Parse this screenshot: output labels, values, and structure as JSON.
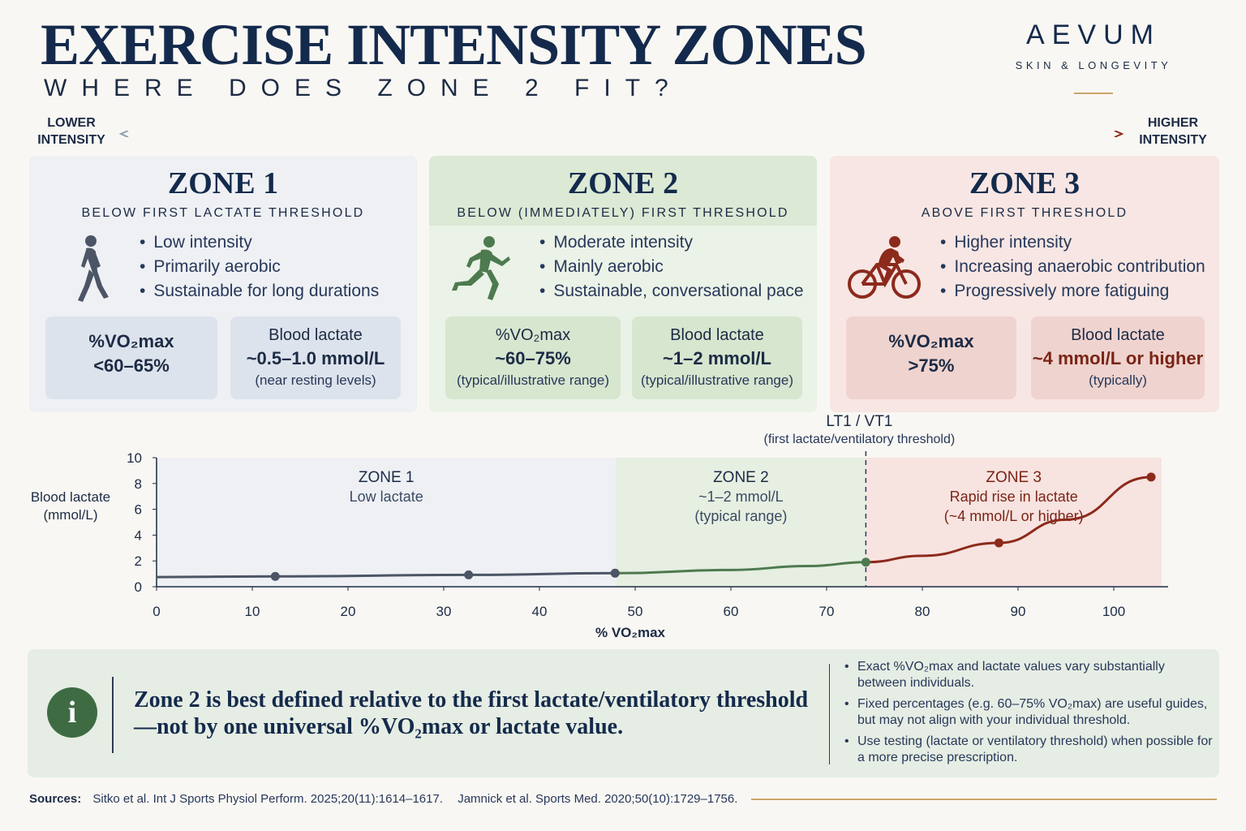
{
  "header": {
    "title": "EXERCISE INTENSITY ZONES",
    "subtitle": "WHERE DOES ZONE 2 FIT?",
    "brand_name": "AEVUM",
    "brand_tagline": "SKIN & LONGEVITY"
  },
  "intensity_scale": {
    "low_label": "LOWER INTENSITY",
    "high_label": "HIGHER INTENSITY"
  },
  "zones": [
    {
      "title": "ZONE 1",
      "subtitle": "BELOW FIRST LACTATE THRESHOLD",
      "icon": "walking-person-icon",
      "bullets": [
        "Low intensity",
        "Primarily aerobic",
        "Sustainable for long durations"
      ],
      "vo2_label": "%VO₂max",
      "vo2_value": "<60–65%",
      "vo2_note": "",
      "lactate_label": "Blood lactate",
      "lactate_value": "~0.5–1.0 mmol/L",
      "lactate_note": "(near resting levels)"
    },
    {
      "title": "ZONE 2",
      "subtitle": "BELOW (IMMEDIATELY) FIRST THRESHOLD",
      "icon": "running-person-icon",
      "bullets": [
        "Moderate intensity",
        "Mainly aerobic",
        "Sustainable, conversational pace"
      ],
      "vo2_label": "%VO₂max",
      "vo2_value": "~60–75%",
      "vo2_note": "(typical/illustrative range)",
      "lactate_label": "Blood lactate",
      "lactate_value": "~1–2 mmol/L",
      "lactate_note": "(typical/illustrative range)"
    },
    {
      "title": "ZONE 3",
      "subtitle": "ABOVE FIRST THRESHOLD",
      "icon": "cyclist-icon",
      "bullets": [
        "Higher intensity",
        "Increasing anaerobic contribution",
        "Progressively more fatiguing"
      ],
      "vo2_label": "%VO₂max",
      "vo2_value": ">75%",
      "vo2_note": "",
      "lactate_label": "Blood lactate",
      "lactate_value": "~4 mmol/L or higher",
      "lactate_note": "(typically)"
    }
  ],
  "chart_data": {
    "type": "line",
    "xlabel": "% VO₂max",
    "ylabel": "Blood lactate (mmol/L)",
    "xlim": [
      0,
      105
    ],
    "ylim": [
      0,
      10
    ],
    "xticks": [
      0,
      10,
      20,
      30,
      40,
      50,
      60,
      70,
      80,
      90,
      100
    ],
    "yticks": [
      0,
      2,
      4,
      6,
      8,
      10
    ],
    "series": [
      {
        "color": "#4b5565",
        "x": [
          0,
          12.4,
          32.6,
          47.9
        ],
        "y": [
          0.75,
          0.8,
          0.92,
          1.05
        ]
      },
      {
        "color": "#4d7a4f",
        "x": [
          47.9,
          60,
          68,
          74.1
        ],
        "y": [
          1.05,
          1.3,
          1.6,
          1.9
        ]
      },
      {
        "color": "#8c2a1c",
        "x": [
          74.1,
          80,
          88.0,
          95,
          103.9
        ],
        "y": [
          1.9,
          2.4,
          3.4,
          5.2,
          8.5
        ]
      }
    ],
    "markers": [
      {
        "x": 12.4,
        "y": 0.8,
        "color": "#4b5565"
      },
      {
        "x": 32.6,
        "y": 0.92,
        "color": "#4b5565"
      },
      {
        "x": 47.9,
        "y": 1.05,
        "color": "#4b5565"
      },
      {
        "x": 74.1,
        "y": 1.9,
        "color": "#4d7a4f"
      },
      {
        "x": 88.0,
        "y": 3.4,
        "color": "#8c2a1c"
      },
      {
        "x": 103.9,
        "y": 8.5,
        "color": "#8c2a1c"
      }
    ],
    "regions": [
      {
        "from": 0,
        "to": 48,
        "color": "#eef0f4",
        "label": "ZONE 1",
        "lines": [
          "Low lactate"
        ],
        "label_color": "#1c2b45"
      },
      {
        "from": 48,
        "to": 74.1,
        "color": "#e6efe1",
        "label": "ZONE 2",
        "lines": [
          "~1–2 mmol/L",
          "(typical range)"
        ],
        "label_color": "#1c2b45"
      },
      {
        "from": 74.1,
        "to": 105,
        "color": "#f7e3e0",
        "label": "ZONE 3",
        "lines": [
          "Rapid rise in lactate",
          "(~4 mmol/L or higher)"
        ],
        "label_color": "#7a2416"
      }
    ],
    "threshold": {
      "x": 74.1,
      "label": "LT1 / VT1",
      "sublabel": "(first lactate/ventilatory threshold)"
    }
  },
  "note": {
    "main_text": "Zone 2 is best defined relative to the first lactate/ventilatory threshold—not by one universal %VO₂max or lactate value.",
    "points": [
      "Exact %VO₂max and lactate values vary substantially between individuals.",
      "Fixed percentages (e.g. 60–75% VO₂max) are useful guides, but may not align with your individual threshold.",
      "Use testing (lactate or ventilatory threshold) when possible for a more precise prescription."
    ]
  },
  "sources": {
    "label": "Sources:",
    "items": [
      "Sitko et al. Int J Sports Physiol Perform. 2025;20(11):1614–1617.",
      "Jamnick et al. Sports Med. 2020;50(10):1729–1756."
    ]
  }
}
